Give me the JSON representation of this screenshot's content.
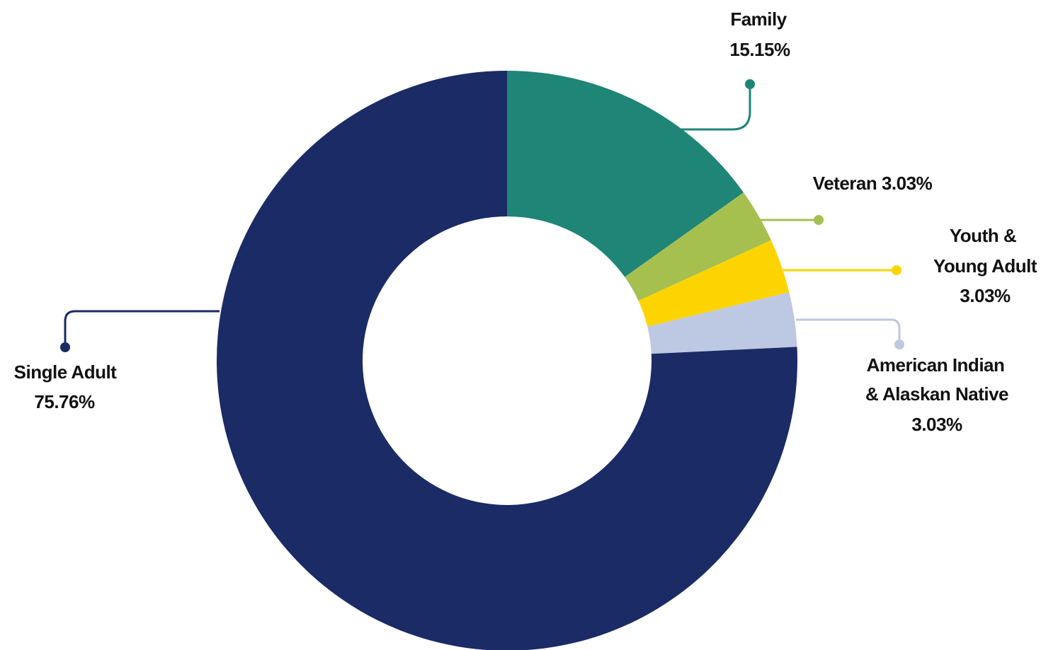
{
  "chart_data": {
    "type": "pie",
    "variant": "donut",
    "slices": [
      {
        "label": "Family",
        "value": 15.15,
        "value_label": "15.15%",
        "color": "#1e8577"
      },
      {
        "label": "Veteran",
        "value": 3.03,
        "value_label": "3.03%",
        "color": "#a6c04f"
      },
      {
        "label": "Youth & Young Adult",
        "value": 3.03,
        "value_label": "3.03%",
        "color": "#fed400"
      },
      {
        "label": "American Indian & Alaskan Native",
        "value": 3.03,
        "value_label": "3.03%",
        "color": "#bdc8e2"
      },
      {
        "label": "Single Adult",
        "value": 75.76,
        "value_label": "75.76%",
        "color": "#1a2b66"
      }
    ],
    "labels": {
      "family": {
        "line1": "Family",
        "line2": "15.15%"
      },
      "veteran": {
        "line1": "Veteran 3.03%"
      },
      "youth": {
        "line1": "Youth &",
        "line2": "Young Adult",
        "line3": "3.03%"
      },
      "native": {
        "line1": "American Indian",
        "line2": "& Alaskan Native",
        "line3": "3.03%"
      },
      "single": {
        "line1": "Single Adult",
        "line2": "75.76%"
      }
    }
  }
}
